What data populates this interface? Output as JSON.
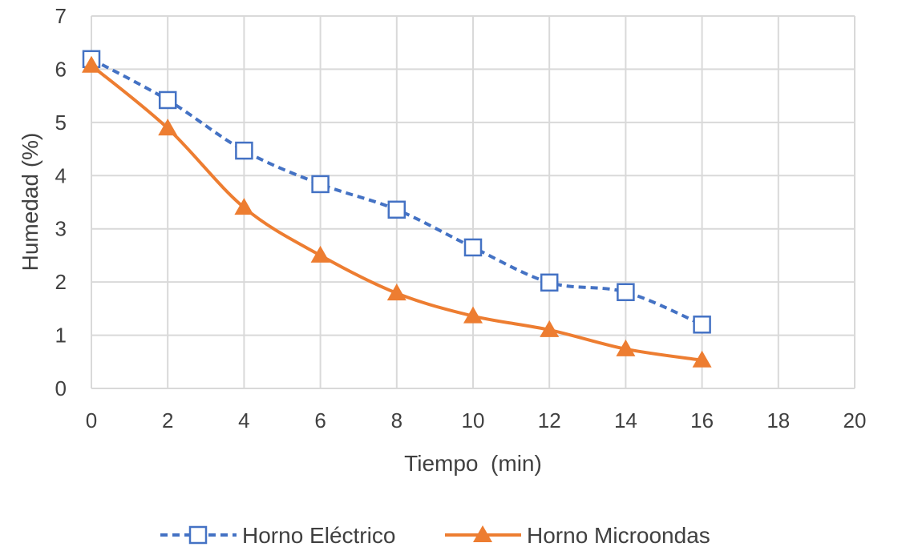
{
  "chart_data": {
    "type": "line",
    "title": "",
    "xlabel": "Tiempo  (min)",
    "ylabel": "Humedad (%)",
    "xlim": [
      0,
      20
    ],
    "ylim": [
      0,
      7
    ],
    "xticks": [
      0,
      2,
      4,
      6,
      8,
      10,
      12,
      14,
      16,
      18,
      20
    ],
    "yticks": [
      0,
      1,
      2,
      3,
      4,
      5,
      6,
      7
    ],
    "grid": true,
    "legend_position": "bottom",
    "series": [
      {
        "name": "Horno Eléctrico",
        "color": "#4472C4",
        "marker": "square-open",
        "line_style": "dashed",
        "x": [
          0,
          2,
          4,
          6,
          8,
          10,
          12,
          14,
          16
        ],
        "y": [
          6.19,
          5.42,
          4.47,
          3.84,
          3.36,
          2.65,
          1.99,
          1.81,
          1.2
        ]
      },
      {
        "name": "Horno Microondas",
        "color": "#ED7D31",
        "marker": "triangle-filled",
        "line_style": "solid",
        "x": [
          0,
          2,
          4,
          6,
          8,
          10,
          12,
          14,
          16
        ],
        "y": [
          6.07,
          4.89,
          3.4,
          2.5,
          1.79,
          1.36,
          1.1,
          0.74,
          0.53
        ]
      }
    ]
  }
}
